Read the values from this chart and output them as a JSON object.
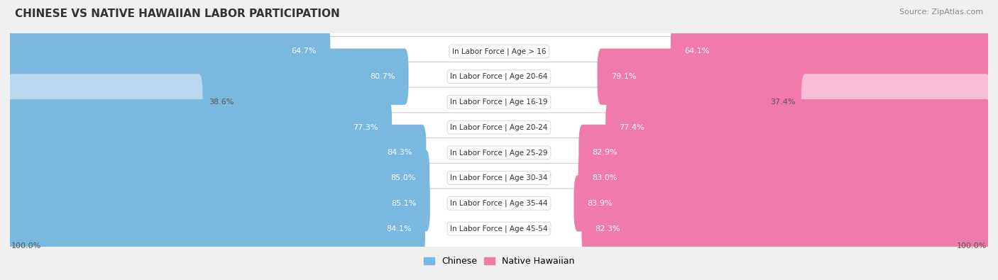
{
  "title": "CHINESE VS NATIVE HAWAIIAN LABOR PARTICIPATION",
  "source": "Source: ZipAtlas.com",
  "categories": [
    "In Labor Force | Age > 16",
    "In Labor Force | Age 20-64",
    "In Labor Force | Age 16-19",
    "In Labor Force | Age 20-24",
    "In Labor Force | Age 25-29",
    "In Labor Force | Age 30-34",
    "In Labor Force | Age 35-44",
    "In Labor Force | Age 45-54"
  ],
  "chinese_values": [
    64.7,
    80.7,
    38.6,
    77.3,
    84.3,
    85.0,
    85.1,
    84.1
  ],
  "hawaiian_values": [
    64.1,
    79.1,
    37.4,
    77.4,
    82.9,
    83.0,
    83.9,
    82.3
  ],
  "chinese_color": "#7ab8e0",
  "chinese_color_light": "#b8d8ee",
  "hawaiian_color": "#f07aaa",
  "hawaiian_color_light": "#f9bdd5",
  "label_color_dark": "#555555",
  "label_color_white": "#ffffff",
  "background_color": "#f0f0f0",
  "row_bg_light": "#f7f7f7",
  "row_border": "#dddddd",
  "max_value": 100.0,
  "bar_height": 0.62,
  "legend_chinese": "Chinese",
  "legend_hawaiian": "Native Hawaiian",
  "title_fontsize": 11,
  "source_fontsize": 8,
  "label_fontsize": 8,
  "cat_fontsize": 7.5,
  "axis_label_fontsize": 8
}
